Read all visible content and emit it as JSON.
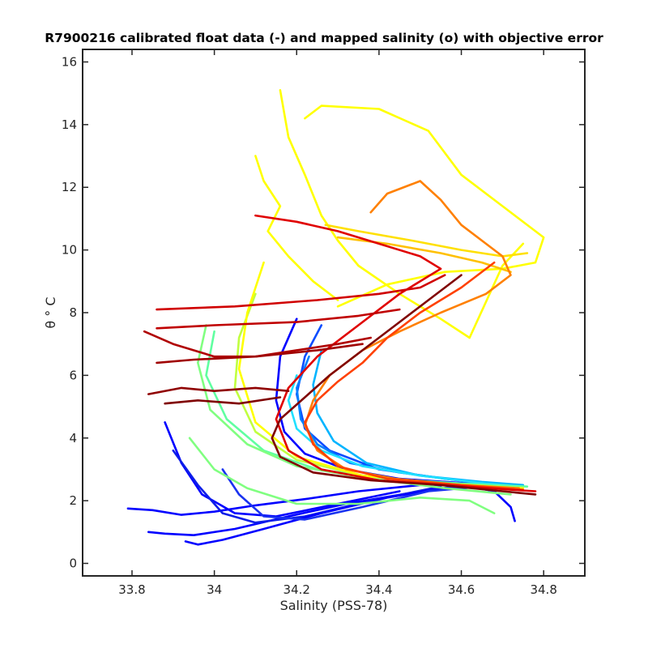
{
  "chart_data": {
    "type": "line",
    "title": "R7900216 calibrated float data (-) and mapped salinity (o) with objective error",
    "xlabel": "Salinity (PSS-78)",
    "ylabel": "θ ° C",
    "xlim": [
      33.68,
      34.9
    ],
    "ylim": [
      -0.4,
      16.4
    ],
    "xticks": [
      "33.8",
      "34",
      "34.2",
      "34.4",
      "34.6",
      "34.8"
    ],
    "yticks": [
      "0",
      "2",
      "4",
      "6",
      "8",
      "10",
      "12",
      "14",
      "16"
    ],
    "grid": false,
    "legend": "none",
    "colormap": "jet",
    "series": [
      {
        "color": "#0000ff",
        "x": [
          33.79,
          33.85,
          33.92,
          34.0,
          34.1,
          34.22,
          34.35,
          34.5,
          34.6,
          34.68,
          34.72,
          34.73
        ],
        "y": [
          1.75,
          1.7,
          1.55,
          1.65,
          1.85,
          2.05,
          2.3,
          2.5,
          2.5,
          2.3,
          1.8,
          1.35
        ]
      },
      {
        "color": "#0000ff",
        "x": [
          33.84,
          33.88,
          33.95,
          34.05,
          34.18,
          34.32,
          34.5,
          34.6
        ],
        "y": [
          1.0,
          0.95,
          0.9,
          1.1,
          1.5,
          1.9,
          2.3,
          2.45
        ]
      },
      {
        "color": "#0000ff",
        "x": [
          33.88,
          33.92,
          33.97,
          34.05,
          34.15,
          34.3,
          34.45
        ],
        "y": [
          4.5,
          3.2,
          2.2,
          1.6,
          1.5,
          1.9,
          2.3
        ]
      },
      {
        "color": "#0d1ee8",
        "x": [
          33.9,
          33.96,
          34.02,
          34.1,
          34.22,
          34.38,
          34.55
        ],
        "y": [
          3.6,
          2.5,
          1.6,
          1.3,
          1.5,
          2.0,
          2.45
        ]
      },
      {
        "color": "#0000ff",
        "x": [
          33.93,
          33.96,
          34.02,
          34.12,
          34.26,
          34.42,
          34.58
        ],
        "y": [
          0.7,
          0.6,
          0.75,
          1.1,
          1.6,
          2.1,
          2.45
        ]
      },
      {
        "color": "#1a33f0",
        "x": [
          34.02,
          34.06,
          34.12,
          34.22,
          34.36,
          34.52,
          34.65
        ],
        "y": [
          3.0,
          2.2,
          1.5,
          1.4,
          1.8,
          2.3,
          2.45
        ]
      },
      {
        "color": "#0000ff",
        "x": [
          34.2,
          34.16,
          34.15,
          34.17,
          34.22,
          34.32,
          34.45,
          34.62,
          34.73
        ],
        "y": [
          7.8,
          6.6,
          5.2,
          4.2,
          3.5,
          3.0,
          2.7,
          2.55,
          2.45
        ]
      },
      {
        "color": "#0a4cff",
        "x": [
          34.26,
          34.22,
          34.2,
          34.22,
          34.28,
          34.4,
          34.56,
          34.72
        ],
        "y": [
          7.6,
          6.6,
          5.4,
          4.3,
          3.6,
          3.0,
          2.7,
          2.5
        ]
      },
      {
        "color": "#0080ff",
        "x": [
          34.23,
          34.2,
          34.21,
          34.25,
          34.33,
          34.45,
          34.62,
          34.74
        ],
        "y": [
          6.6,
          5.6,
          4.6,
          3.8,
          3.2,
          2.9,
          2.6,
          2.45
        ]
      },
      {
        "color": "#00b4ff",
        "x": [
          34.26,
          34.24,
          34.25,
          34.29,
          34.37,
          34.5,
          34.65,
          34.75
        ],
        "y": [
          6.8,
          5.7,
          4.8,
          3.9,
          3.2,
          2.8,
          2.6,
          2.5
        ]
      },
      {
        "color": "#20e0ff",
        "x": [
          34.2,
          34.18,
          34.2,
          34.26,
          34.36,
          34.5,
          34.66,
          34.75
        ],
        "y": [
          6.0,
          5.2,
          4.3,
          3.6,
          3.1,
          2.8,
          2.55,
          2.45
        ]
      },
      {
        "color": "#60ffa0",
        "x": [
          34.0,
          33.98,
          34.03,
          34.12,
          34.25,
          34.42,
          34.6,
          34.76
        ],
        "y": [
          7.4,
          6.0,
          4.6,
          3.6,
          3.0,
          2.7,
          2.55,
          2.45
        ]
      },
      {
        "color": "#80ff80",
        "x": [
          33.98,
          33.96,
          33.99,
          34.08,
          34.2,
          34.38,
          34.56,
          34.72
        ],
        "y": [
          7.6,
          6.4,
          4.9,
          3.8,
          3.1,
          2.7,
          2.4,
          2.2
        ]
      },
      {
        "color": "#80ff80",
        "x": [
          33.94,
          34.0,
          34.08,
          34.2,
          34.35,
          34.5,
          34.62,
          34.68
        ],
        "y": [
          4.0,
          3.0,
          2.4,
          1.9,
          1.9,
          2.1,
          2.0,
          1.6
        ]
      },
      {
        "color": "#c0ff40",
        "x": [
          34.1,
          34.06,
          34.05,
          34.1,
          34.2,
          34.36,
          34.55,
          34.74
        ],
        "y": [
          8.6,
          7.2,
          5.6,
          4.2,
          3.3,
          2.8,
          2.55,
          2.4
        ]
      },
      {
        "color": "#ffff00",
        "x": [
          34.12,
          34.08,
          34.06,
          34.1,
          34.2,
          34.36,
          34.55,
          34.75
        ],
        "y": [
          9.6,
          8.0,
          6.2,
          4.5,
          3.4,
          2.8,
          2.55,
          2.4
        ]
      },
      {
        "color": "#ffff00",
        "x": [
          34.16,
          34.18,
          34.22,
          34.26,
          34.3,
          34.35,
          34.45,
          34.55,
          34.62,
          34.7,
          34.75
        ],
        "y": [
          15.1,
          13.6,
          12.4,
          11.1,
          10.3,
          9.5,
          8.6,
          7.8,
          7.2,
          9.5,
          10.2
        ]
      },
      {
        "color": "#ffff00",
        "x": [
          34.22,
          34.26,
          34.4,
          34.52,
          34.6,
          34.7,
          34.8,
          34.78,
          34.7,
          34.56,
          34.42,
          34.3
        ],
        "y": [
          14.2,
          14.6,
          14.5,
          13.8,
          12.4,
          11.4,
          10.4,
          9.6,
          9.4,
          9.3,
          8.9,
          8.2
        ]
      },
      {
        "color": "#ffff00",
        "x": [
          34.1,
          34.12,
          34.16,
          34.13,
          34.18,
          34.24,
          34.3
        ],
        "y": [
          13.0,
          12.2,
          11.4,
          10.6,
          9.8,
          9.0,
          8.4
        ]
      },
      {
        "color": "#ffe000",
        "x": [
          34.27,
          34.35,
          34.48,
          34.6,
          34.7,
          34.76
        ],
        "y": [
          10.8,
          10.6,
          10.3,
          10.0,
          9.8,
          9.9
        ]
      },
      {
        "color": "#ffc000",
        "x": [
          34.3,
          34.42,
          34.55,
          34.65,
          34.72
        ],
        "y": [
          10.4,
          10.2,
          9.9,
          9.6,
          9.3
        ]
      },
      {
        "color": "#ff8000",
        "x": [
          34.38,
          34.42,
          34.5,
          34.55,
          34.6,
          34.66,
          34.7,
          34.72,
          34.66,
          34.55,
          34.45,
          34.36,
          34.28,
          34.24,
          34.22,
          34.25,
          34.32,
          34.44,
          34.6,
          34.74
        ],
        "y": [
          11.2,
          11.8,
          12.2,
          11.6,
          10.8,
          10.2,
          9.8,
          9.2,
          8.6,
          8.0,
          7.4,
          6.8,
          6.0,
          5.2,
          4.4,
          3.6,
          3.0,
          2.7,
          2.5,
          2.4
        ]
      },
      {
        "color": "#ff4000",
        "x": [
          34.68,
          34.6,
          34.5,
          34.42,
          34.36,
          34.3,
          34.25,
          34.22,
          34.24,
          34.3,
          34.42,
          34.6,
          34.75
        ],
        "y": [
          9.6,
          8.8,
          8.0,
          7.2,
          6.4,
          5.8,
          5.2,
          4.5,
          3.8,
          3.1,
          2.7,
          2.5,
          2.35
        ]
      },
      {
        "color": "#e00000",
        "x": [
          34.1,
          34.2,
          34.3,
          34.4,
          34.5,
          34.55,
          34.45,
          34.35,
          34.25,
          34.18,
          34.15,
          34.18,
          34.26,
          34.4,
          34.56,
          34.72,
          34.78
        ],
        "y": [
          11.1,
          10.9,
          10.6,
          10.2,
          9.8,
          9.4,
          8.6,
          7.6,
          6.6,
          5.6,
          4.6,
          3.6,
          3.0,
          2.65,
          2.5,
          2.35,
          2.3
        ]
      },
      {
        "color": "#d00000",
        "x": [
          33.86,
          34.05,
          34.25,
          34.4,
          34.5,
          34.56
        ],
        "y": [
          8.1,
          8.2,
          8.4,
          8.6,
          8.8,
          9.2
        ]
      },
      {
        "color": "#c00000",
        "x": [
          33.86,
          34.0,
          34.2,
          34.35,
          34.45
        ],
        "y": [
          7.5,
          7.6,
          7.7,
          7.9,
          8.1
        ]
      },
      {
        "color": "#b00000",
        "x": [
          33.83,
          33.9,
          34.0,
          34.1,
          34.2,
          34.3,
          34.38
        ],
        "y": [
          7.4,
          7.0,
          6.6,
          6.6,
          6.8,
          7.0,
          7.2
        ]
      },
      {
        "color": "#a00000",
        "x": [
          33.86,
          33.95,
          34.1,
          34.25,
          34.36
        ],
        "y": [
          6.4,
          6.5,
          6.6,
          6.8,
          7.0
        ]
      },
      {
        "color": "#900000",
        "x": [
          33.84,
          33.92,
          34.0,
          34.1,
          34.18
        ],
        "y": [
          5.4,
          5.6,
          5.5,
          5.6,
          5.5
        ]
      },
      {
        "color": "#800000",
        "x": [
          33.88,
          33.96,
          34.06,
          34.16
        ],
        "y": [
          5.1,
          5.2,
          5.1,
          5.3
        ]
      },
      {
        "color": "#800000",
        "x": [
          34.6,
          34.52,
          34.44,
          34.36,
          34.28,
          34.22,
          34.16,
          34.14,
          34.16,
          34.24,
          34.38,
          34.55,
          34.7,
          34.78
        ],
        "y": [
          9.2,
          8.4,
          7.6,
          6.8,
          6.0,
          5.3,
          4.6,
          4.0,
          3.4,
          2.9,
          2.65,
          2.5,
          2.3,
          2.2
        ]
      }
    ]
  }
}
